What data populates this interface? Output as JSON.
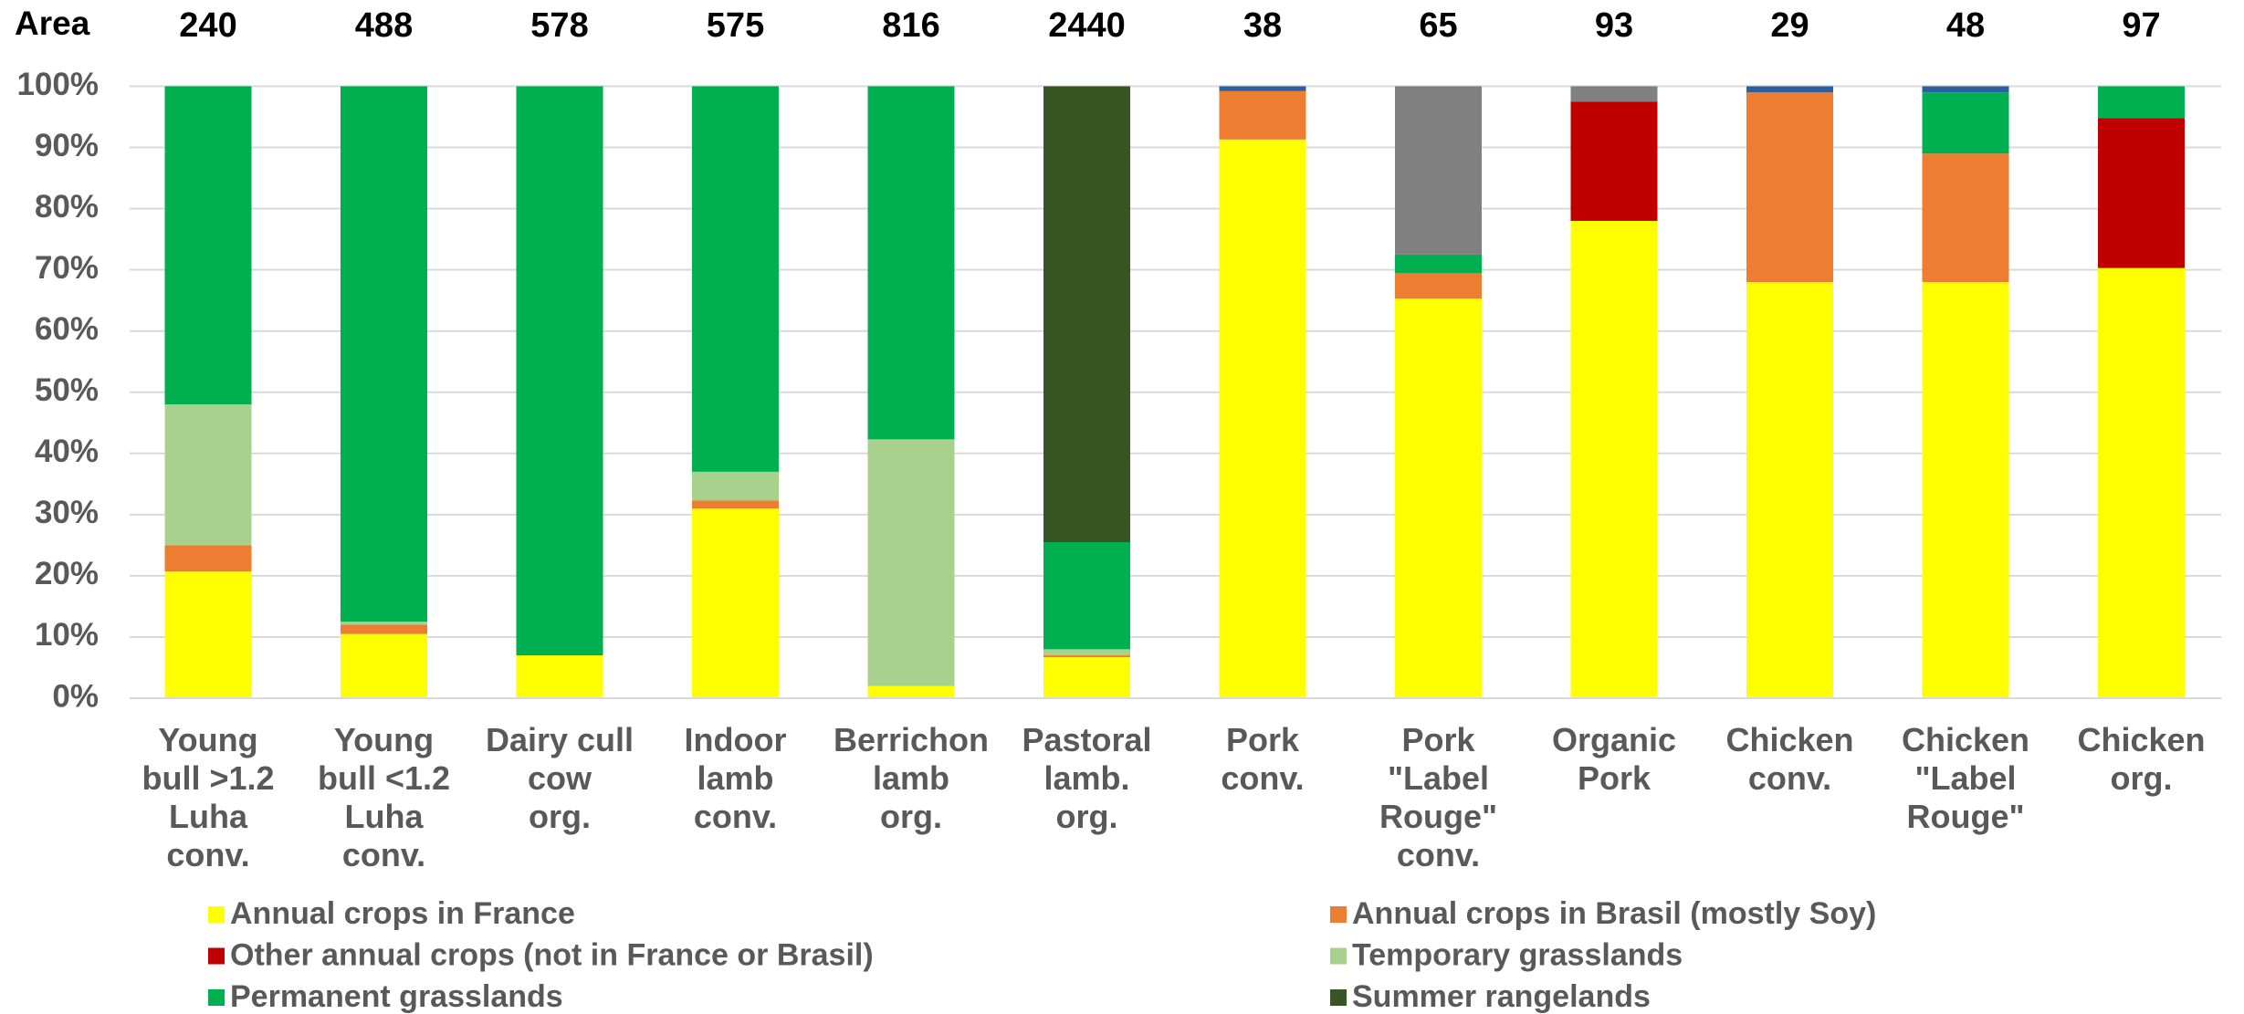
{
  "chart_data": {
    "type": "stacked_bar",
    "area_label": "Area",
    "area_values": [
      240,
      488,
      578,
      575,
      816,
      2440,
      38,
      65,
      93,
      29,
      48,
      97
    ],
    "categories": [
      "Young\nbull >1.2\nLuha\nconv.",
      "Young\nbull <1.2\nLuha\nconv.",
      "Dairy cull\ncow\norg.",
      "Indoor\nlamb\nconv.",
      "Berrichon\nlamb\norg.",
      "Pastoral\nlamb.\norg.",
      "Pork\nconv.",
      "Pork\n\"Label\nRouge\"\nconv.",
      "Organic\nPork",
      "Chicken\nconv.",
      "Chicken\n\"Label\nRouge\"",
      "Chicken\norg."
    ],
    "series": [
      {
        "name": "Annual crops in France",
        "color": "#ffff00",
        "values": [
          20.7,
          10.5,
          7,
          31,
          2,
          6.7,
          91.3,
          65.3,
          78,
          68,
          68,
          70.3
        ]
      },
      {
        "name": "Annual crops in Brasil (mostly Soy)",
        "color": "#ed7d31",
        "values": [
          4.3,
          1.5,
          0,
          1.3,
          0,
          0.3,
          7.9,
          4.2,
          0,
          31,
          21,
          0
        ]
      },
      {
        "name": "Other annual crops (not in France or Brasil)",
        "color": "#c00000",
        "values": [
          0,
          0,
          0,
          0,
          0,
          0,
          0,
          0,
          19.5,
          0,
          0,
          24.5
        ]
      },
      {
        "name": "Temporary grasslands",
        "color": "#a9d18e",
        "values": [
          23,
          0.5,
          0,
          4.7,
          40.3,
          1,
          0,
          0,
          0,
          0,
          0,
          0
        ]
      },
      {
        "name": "Permanent grasslands",
        "color": "#00b050",
        "values": [
          52,
          87.5,
          93,
          63,
          57.7,
          17.5,
          0,
          3,
          0,
          0,
          10,
          5.2
        ]
      },
      {
        "name": "Summer rangelands",
        "color": "#375623",
        "values": [
          0,
          0,
          0,
          0,
          0,
          74.5,
          0,
          0,
          0,
          0,
          0,
          0
        ]
      },
      {
        "color": "#808080",
        "values": [
          0,
          0,
          0,
          0,
          0,
          0,
          0,
          27.5,
          2.5,
          0,
          0,
          0
        ]
      },
      {
        "color": "#2e5f9e",
        "values": [
          0,
          0,
          0,
          0,
          0,
          0,
          0.8,
          0,
          0,
          1,
          1,
          0
        ]
      }
    ],
    "ylim": [
      0,
      100
    ],
    "yticks": [
      {
        "value": 0,
        "label": "0%"
      },
      {
        "value": 10,
        "label": "10%"
      },
      {
        "value": 20,
        "label": "20%"
      },
      {
        "value": 30,
        "label": "30%"
      },
      {
        "value": 40,
        "label": "40%"
      },
      {
        "value": 50,
        "label": "50%"
      },
      {
        "value": 60,
        "label": "60%"
      },
      {
        "value": 70,
        "label": "70%"
      },
      {
        "value": 80,
        "label": "80%"
      },
      {
        "value": 90,
        "label": "90%"
      },
      {
        "value": 100,
        "label": "100%"
      }
    ],
    "grid": true
  }
}
